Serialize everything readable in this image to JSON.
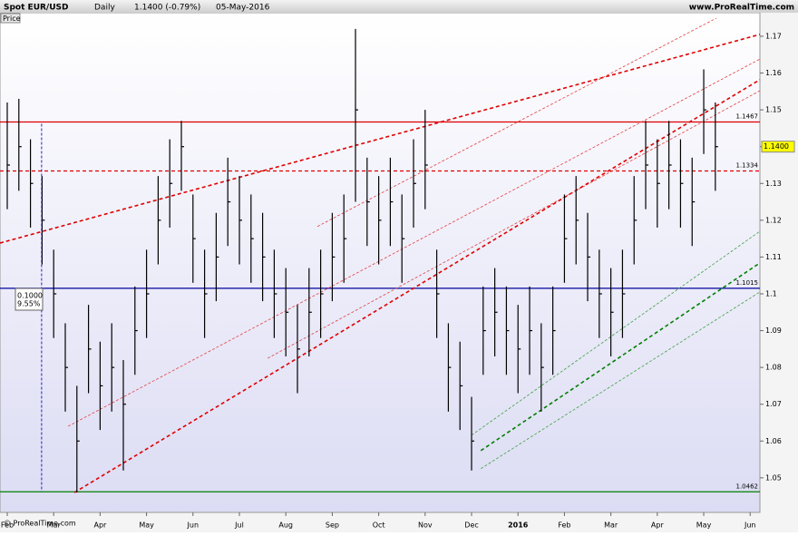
{
  "chart_data": {
    "type": "ohlc",
    "title": "Spot EUR/USD",
    "period": "Daily",
    "change": "1.1400 (-0.79%)",
    "date": "05-May-2016",
    "source": "www.ProRealTime.com",
    "price_label": "Price",
    "footer": "© ProRealTime.com",
    "color": "#000000",
    "x": [
      0,
      0.25,
      0.5,
      0.75,
      1,
      1.25,
      1.5,
      1.75,
      2,
      2.25,
      2.5,
      2.75,
      3,
      3.25,
      3.5,
      3.75,
      4,
      4.25,
      4.5,
      4.75,
      5,
      5.25,
      5.5,
      5.75,
      6,
      6.25,
      6.5,
      6.75,
      7,
      7.25,
      7.5,
      7.75,
      8,
      8.25,
      8.5,
      8.75,
      9,
      9.25,
      9.5,
      9.75,
      10,
      10.25,
      10.5,
      10.75,
      11,
      11.25,
      11.5,
      11.75,
      12,
      12.25,
      12.5,
      12.75,
      13,
      13.25,
      13.5,
      13.75,
      14,
      14.25,
      14.5,
      14.75,
      15,
      15.25
    ],
    "high": [
      1.152,
      1.153,
      1.142,
      1.132,
      1.112,
      1.092,
      1.075,
      1.097,
      1.087,
      1.092,
      1.082,
      1.102,
      1.112,
      1.132,
      1.142,
      1.147,
      1.127,
      1.112,
      1.122,
      1.137,
      1.132,
      1.127,
      1.122,
      1.112,
      1.107,
      1.097,
      1.107,
      1.112,
      1.122,
      1.127,
      1.172,
      1.137,
      1.132,
      1.137,
      1.127,
      1.142,
      1.15,
      1.112,
      1.092,
      1.087,
      1.072,
      1.102,
      1.107,
      1.102,
      1.097,
      1.102,
      1.092,
      1.102,
      1.127,
      1.132,
      1.122,
      1.112,
      1.107,
      1.112,
      1.132,
      1.147,
      1.142,
      1.147,
      1.142,
      1.137,
      1.161,
      1.152
    ],
    "low": [
      1.123,
      1.128,
      1.118,
      1.108,
      1.088,
      1.068,
      1.046,
      1.073,
      1.063,
      1.068,
      1.052,
      1.078,
      1.088,
      1.108,
      1.118,
      1.128,
      1.103,
      1.088,
      1.098,
      1.113,
      1.108,
      1.103,
      1.098,
      1.088,
      1.083,
      1.073,
      1.083,
      1.088,
      1.098,
      1.103,
      1.125,
      1.113,
      1.108,
      1.113,
      1.103,
      1.118,
      1.123,
      1.088,
      1.068,
      1.063,
      1.052,
      1.078,
      1.083,
      1.078,
      1.073,
      1.078,
      1.068,
      1.078,
      1.103,
      1.108,
      1.098,
      1.088,
      1.083,
      1.088,
      1.108,
      1.123,
      1.118,
      1.123,
      1.118,
      1.113,
      1.138,
      1.128
    ],
    "close": [
      1.135,
      1.14,
      1.13,
      1.12,
      1.1,
      1.08,
      1.06,
      1.085,
      1.075,
      1.08,
      1.07,
      1.09,
      1.1,
      1.12,
      1.13,
      1.14,
      1.115,
      1.1,
      1.11,
      1.125,
      1.12,
      1.115,
      1.11,
      1.1,
      1.095,
      1.085,
      1.095,
      1.1,
      1.11,
      1.115,
      1.15,
      1.125,
      1.12,
      1.125,
      1.115,
      1.13,
      1.135,
      1.1,
      1.08,
      1.075,
      1.06,
      1.09,
      1.095,
      1.09,
      1.085,
      1.09,
      1.08,
      1.09,
      1.115,
      1.12,
      1.11,
      1.1,
      1.095,
      1.1,
      1.12,
      1.135,
      1.13,
      1.135,
      1.13,
      1.125,
      1.15,
      1.14
    ],
    "xlim": [
      -0.156,
      16.21
    ],
    "ylim": [
      1.0406,
      1.1764
    ],
    "xticks": [
      {
        "value": 0,
        "label": "Feb"
      },
      {
        "value": 1,
        "label": "Mar"
      },
      {
        "value": 2,
        "label": "Apr"
      },
      {
        "value": 3,
        "label": "May"
      },
      {
        "value": 4,
        "label": "Jun"
      },
      {
        "value": 5,
        "label": "Jul"
      },
      {
        "value": 6,
        "label": "Aug"
      },
      {
        "value": 7,
        "label": "Sep"
      },
      {
        "value": 8,
        "label": "Oct"
      },
      {
        "value": 9,
        "label": "Nov"
      },
      {
        "value": 10,
        "label": "Dec"
      },
      {
        "value": 11,
        "label": "2016"
      },
      {
        "value": 12,
        "label": "Feb"
      },
      {
        "value": 13,
        "label": "Mar"
      },
      {
        "value": 14,
        "label": "Apr"
      },
      {
        "value": 15,
        "label": "May"
      },
      {
        "value": 16,
        "label": "Jun"
      }
    ],
    "yticks": [
      1.05,
      1.06,
      1.07,
      1.08,
      1.09,
      1.1,
      1.11,
      1.12,
      1.13,
      1.14,
      1.15,
      1.16,
      1.17
    ],
    "levels": [
      {
        "value": 1.1467,
        "color": "#e00000",
        "style": "solid"
      },
      {
        "value": 1.1334,
        "color": "#e00000",
        "style": "dashed"
      },
      {
        "value": 1.1015,
        "color": "#0000a0",
        "style": "solid"
      },
      {
        "value": 1.0462,
        "color": "#008000",
        "style": "solid"
      }
    ],
    "trendlines": [
      {
        "color": "#e00000",
        "style": "thick",
        "start": [
          -0.156,
          1.1138
        ],
        "end": [
          16.21,
          1.1705
        ]
      },
      {
        "color": "#e00000",
        "style": "thick",
        "start": [
          1.445,
          1.046
        ],
        "end": [
          16.21,
          1.1582
        ]
      },
      {
        "color": "#e04040",
        "style": "thin",
        "start": [
          1.31,
          1.064
        ],
        "end": [
          16.21,
          1.1638
        ]
      },
      {
        "color": "#e04040",
        "style": "thin",
        "start": [
          5.61,
          1.0825
        ],
        "end": [
          16.21,
          1.1552
        ]
      },
      {
        "color": "#e04040",
        "style": "thin",
        "start": [
          6.68,
          1.1183
        ],
        "end": [
          15.27,
          1.1749
        ]
      },
      {
        "color": "#008000",
        "style": "thick",
        "start": [
          10.2,
          1.0574
        ],
        "end": [
          16.21,
          1.1084
        ]
      },
      {
        "color": "#40a040",
        "style": "thin",
        "start": [
          10.0,
          1.0616
        ],
        "end": [
          16.21,
          1.117
        ]
      },
      {
        "color": "#40a040",
        "style": "thin",
        "start": [
          10.2,
          1.0525
        ],
        "end": [
          16.21,
          1.1005
        ]
      }
    ],
    "measure": {
      "x": 0.74,
      "from": 1.0462,
      "to": 1.1462,
      "value": 0.1,
      "value_label": "0.1000",
      "percent": 9.55,
      "percent_label": "9.55%"
    },
    "last": {
      "value": 1.14,
      "label": "1.1400"
    }
  }
}
